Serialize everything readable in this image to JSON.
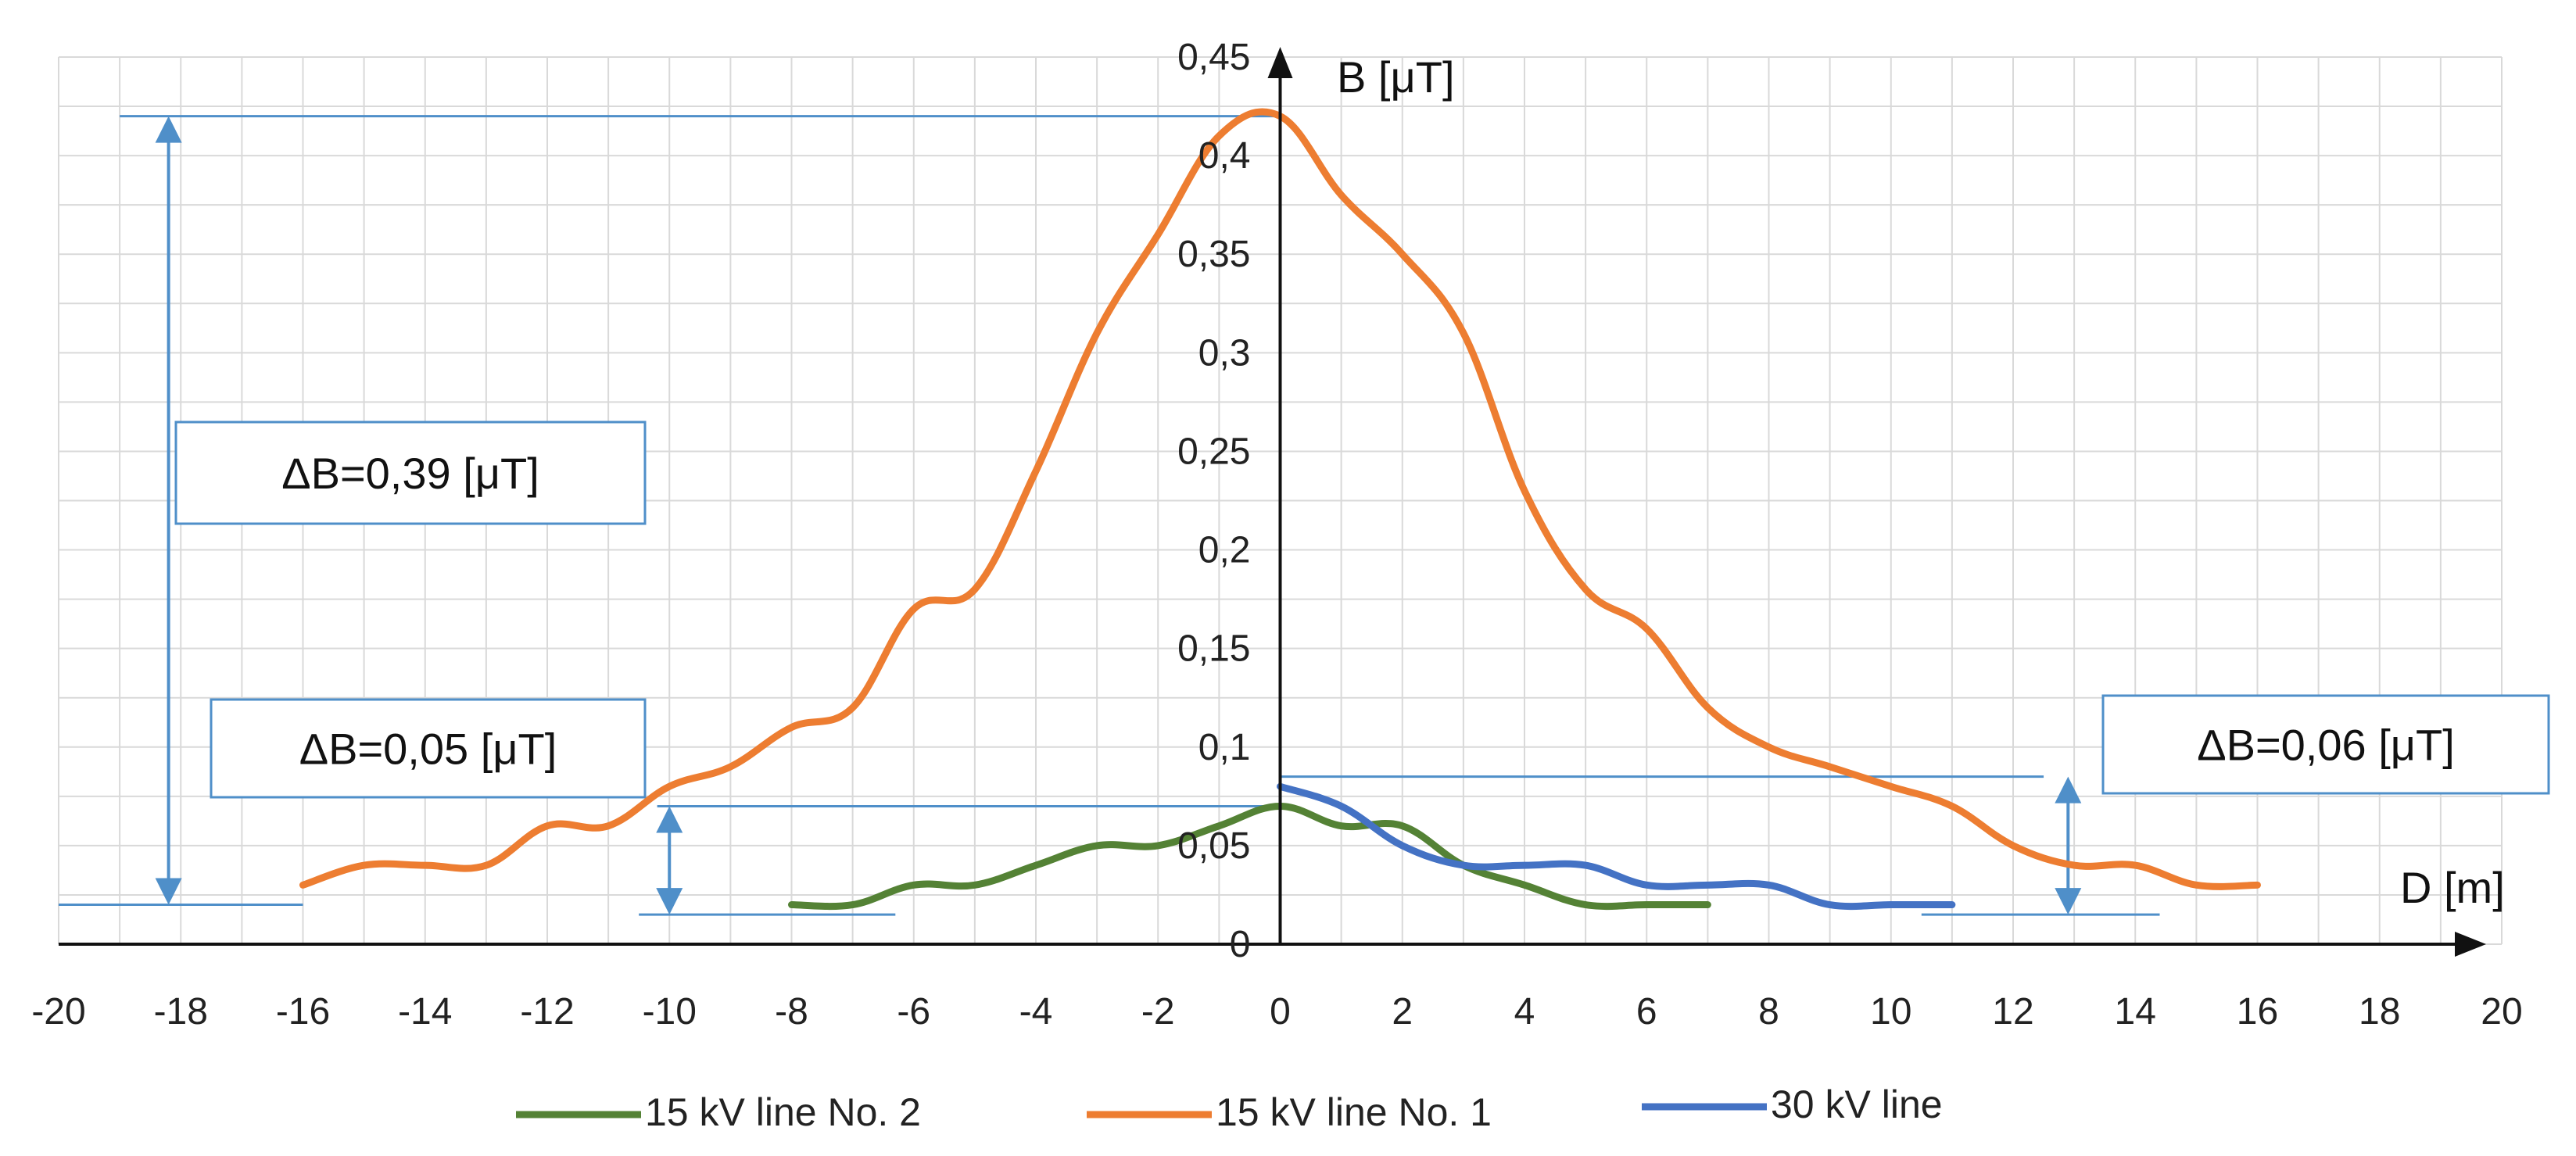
{
  "chart_data": {
    "type": "line",
    "title": "",
    "xlabel": "D [m]",
    "ylabel": "B  [μT]",
    "xlim": [
      -20,
      20
    ],
    "ylim": [
      0,
      0.45
    ],
    "grid": true,
    "x_ticks": [
      "-20",
      "-18",
      "-16",
      "-14",
      "-12",
      "-10",
      "-8",
      "-6",
      "-4",
      "-2",
      "0",
      "2",
      "4",
      "6",
      "8",
      "10",
      "12",
      "14",
      "16",
      "18",
      "20"
    ],
    "y_ticks": [
      "0",
      "0,05",
      "0,1",
      "0,15",
      "0,2",
      "0,25",
      "0,3",
      "0,35",
      "0,4",
      "0,45"
    ],
    "series": [
      {
        "name": "15 kV line No. 2",
        "color": "#548235",
        "x": [
          -8,
          -7,
          -6,
          -5,
          -4,
          -3,
          -2,
          -1,
          0,
          1,
          2,
          3,
          4,
          5,
          6,
          7
        ],
        "y": [
          0.02,
          0.02,
          0.03,
          0.03,
          0.04,
          0.05,
          0.05,
          0.06,
          0.07,
          0.06,
          0.06,
          0.04,
          0.03,
          0.02,
          0.02,
          0.02
        ]
      },
      {
        "name": "15 kV line No. 1",
        "color": "#ED7D31",
        "x": [
          -16,
          -15,
          -14,
          -13,
          -12,
          -11,
          -10,
          -9,
          -8,
          -7,
          -6,
          -5,
          -4,
          -3,
          -2,
          -1,
          0,
          1,
          2,
          3,
          4,
          5,
          6,
          7,
          8,
          9,
          10,
          11,
          12,
          13,
          14,
          15,
          16
        ],
        "y": [
          0.03,
          0.04,
          0.04,
          0.04,
          0.06,
          0.06,
          0.08,
          0.09,
          0.11,
          0.12,
          0.17,
          0.18,
          0.24,
          0.31,
          0.36,
          0.41,
          0.42,
          0.38,
          0.35,
          0.31,
          0.23,
          0.18,
          0.16,
          0.12,
          0.1,
          0.09,
          0.08,
          0.07,
          0.05,
          0.04,
          0.04,
          0.03,
          0.03
        ]
      },
      {
        "name": "30 kV line",
        "color": "#4472C4",
        "x": [
          0,
          1,
          2,
          3,
          4,
          5,
          6,
          7,
          8,
          9,
          10,
          11
        ],
        "y": [
          0.08,
          0.07,
          0.05,
          0.04,
          0.04,
          0.04,
          0.03,
          0.03,
          0.03,
          0.02,
          0.02,
          0.02
        ]
      }
    ],
    "annotations": [
      {
        "label": "ΔB=0,39 [μT]",
        "from": 0.02,
        "to": 0.42,
        "at_x": -18.2
      },
      {
        "label": "ΔB=0,05 [μT]",
        "from": 0.015,
        "to": 0.07,
        "at_x": -10
      },
      {
        "label": "ΔB=0,06 [μT]",
        "from": 0.015,
        "to": 0.085,
        "at_x": 12.9
      }
    ],
    "legend": [
      "15 kV line No. 2",
      "15 kV line No. 1",
      "30 kV line"
    ],
    "annotation_color": "#4f8fc9"
  }
}
